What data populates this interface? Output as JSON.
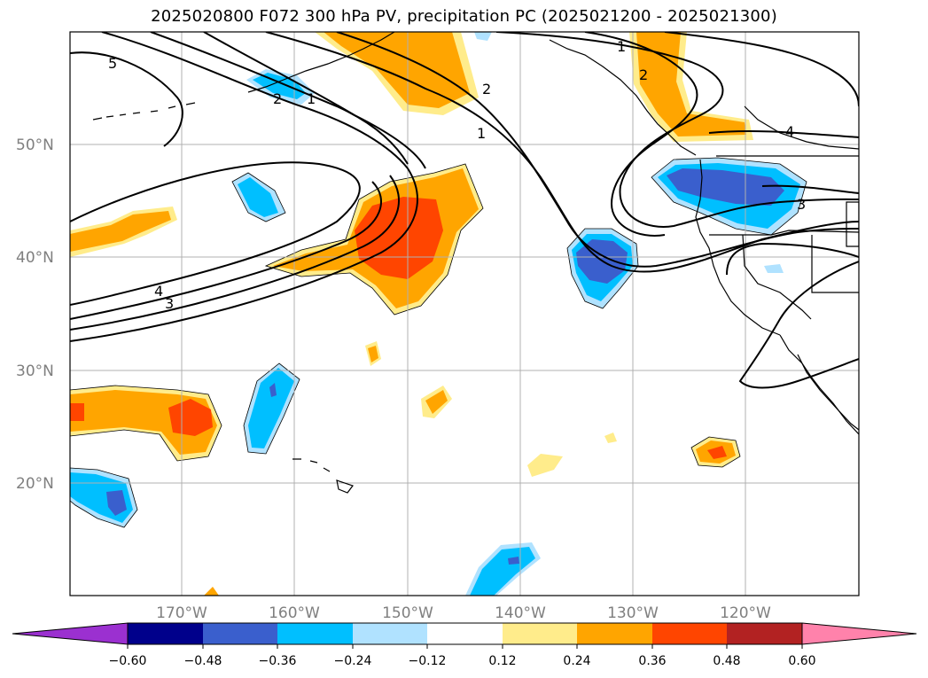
{
  "title": "2025020800 F072 300 hPa PV, precipitation PC (2025021200 - 2025021300)",
  "map": {
    "lon_labels": [
      "170°W",
      "160°W",
      "150°W",
      "140°W",
      "130°W",
      "120°W"
    ],
    "lat_labels": [
      "50°N",
      "40°N",
      "30°N",
      "20°N"
    ],
    "contour_labels": [
      "5",
      "2",
      "1",
      "2",
      "1",
      "1",
      "2",
      "4",
      "4",
      "3",
      "3"
    ]
  },
  "colorbar": {
    "ticks": [
      "−0.60",
      "−0.48",
      "−0.36",
      "−0.24",
      "−0.12",
      "0.12",
      "0.24",
      "0.36",
      "0.48",
      "0.60"
    ],
    "colors": [
      "#9b30d0",
      "#00008b",
      "#3a5fcd",
      "#00bfff",
      "#b0e2ff",
      "#ffffff",
      "#ffec8b",
      "#ffa500",
      "#ff4500",
      "#b22222",
      "#ff82ab"
    ]
  }
}
